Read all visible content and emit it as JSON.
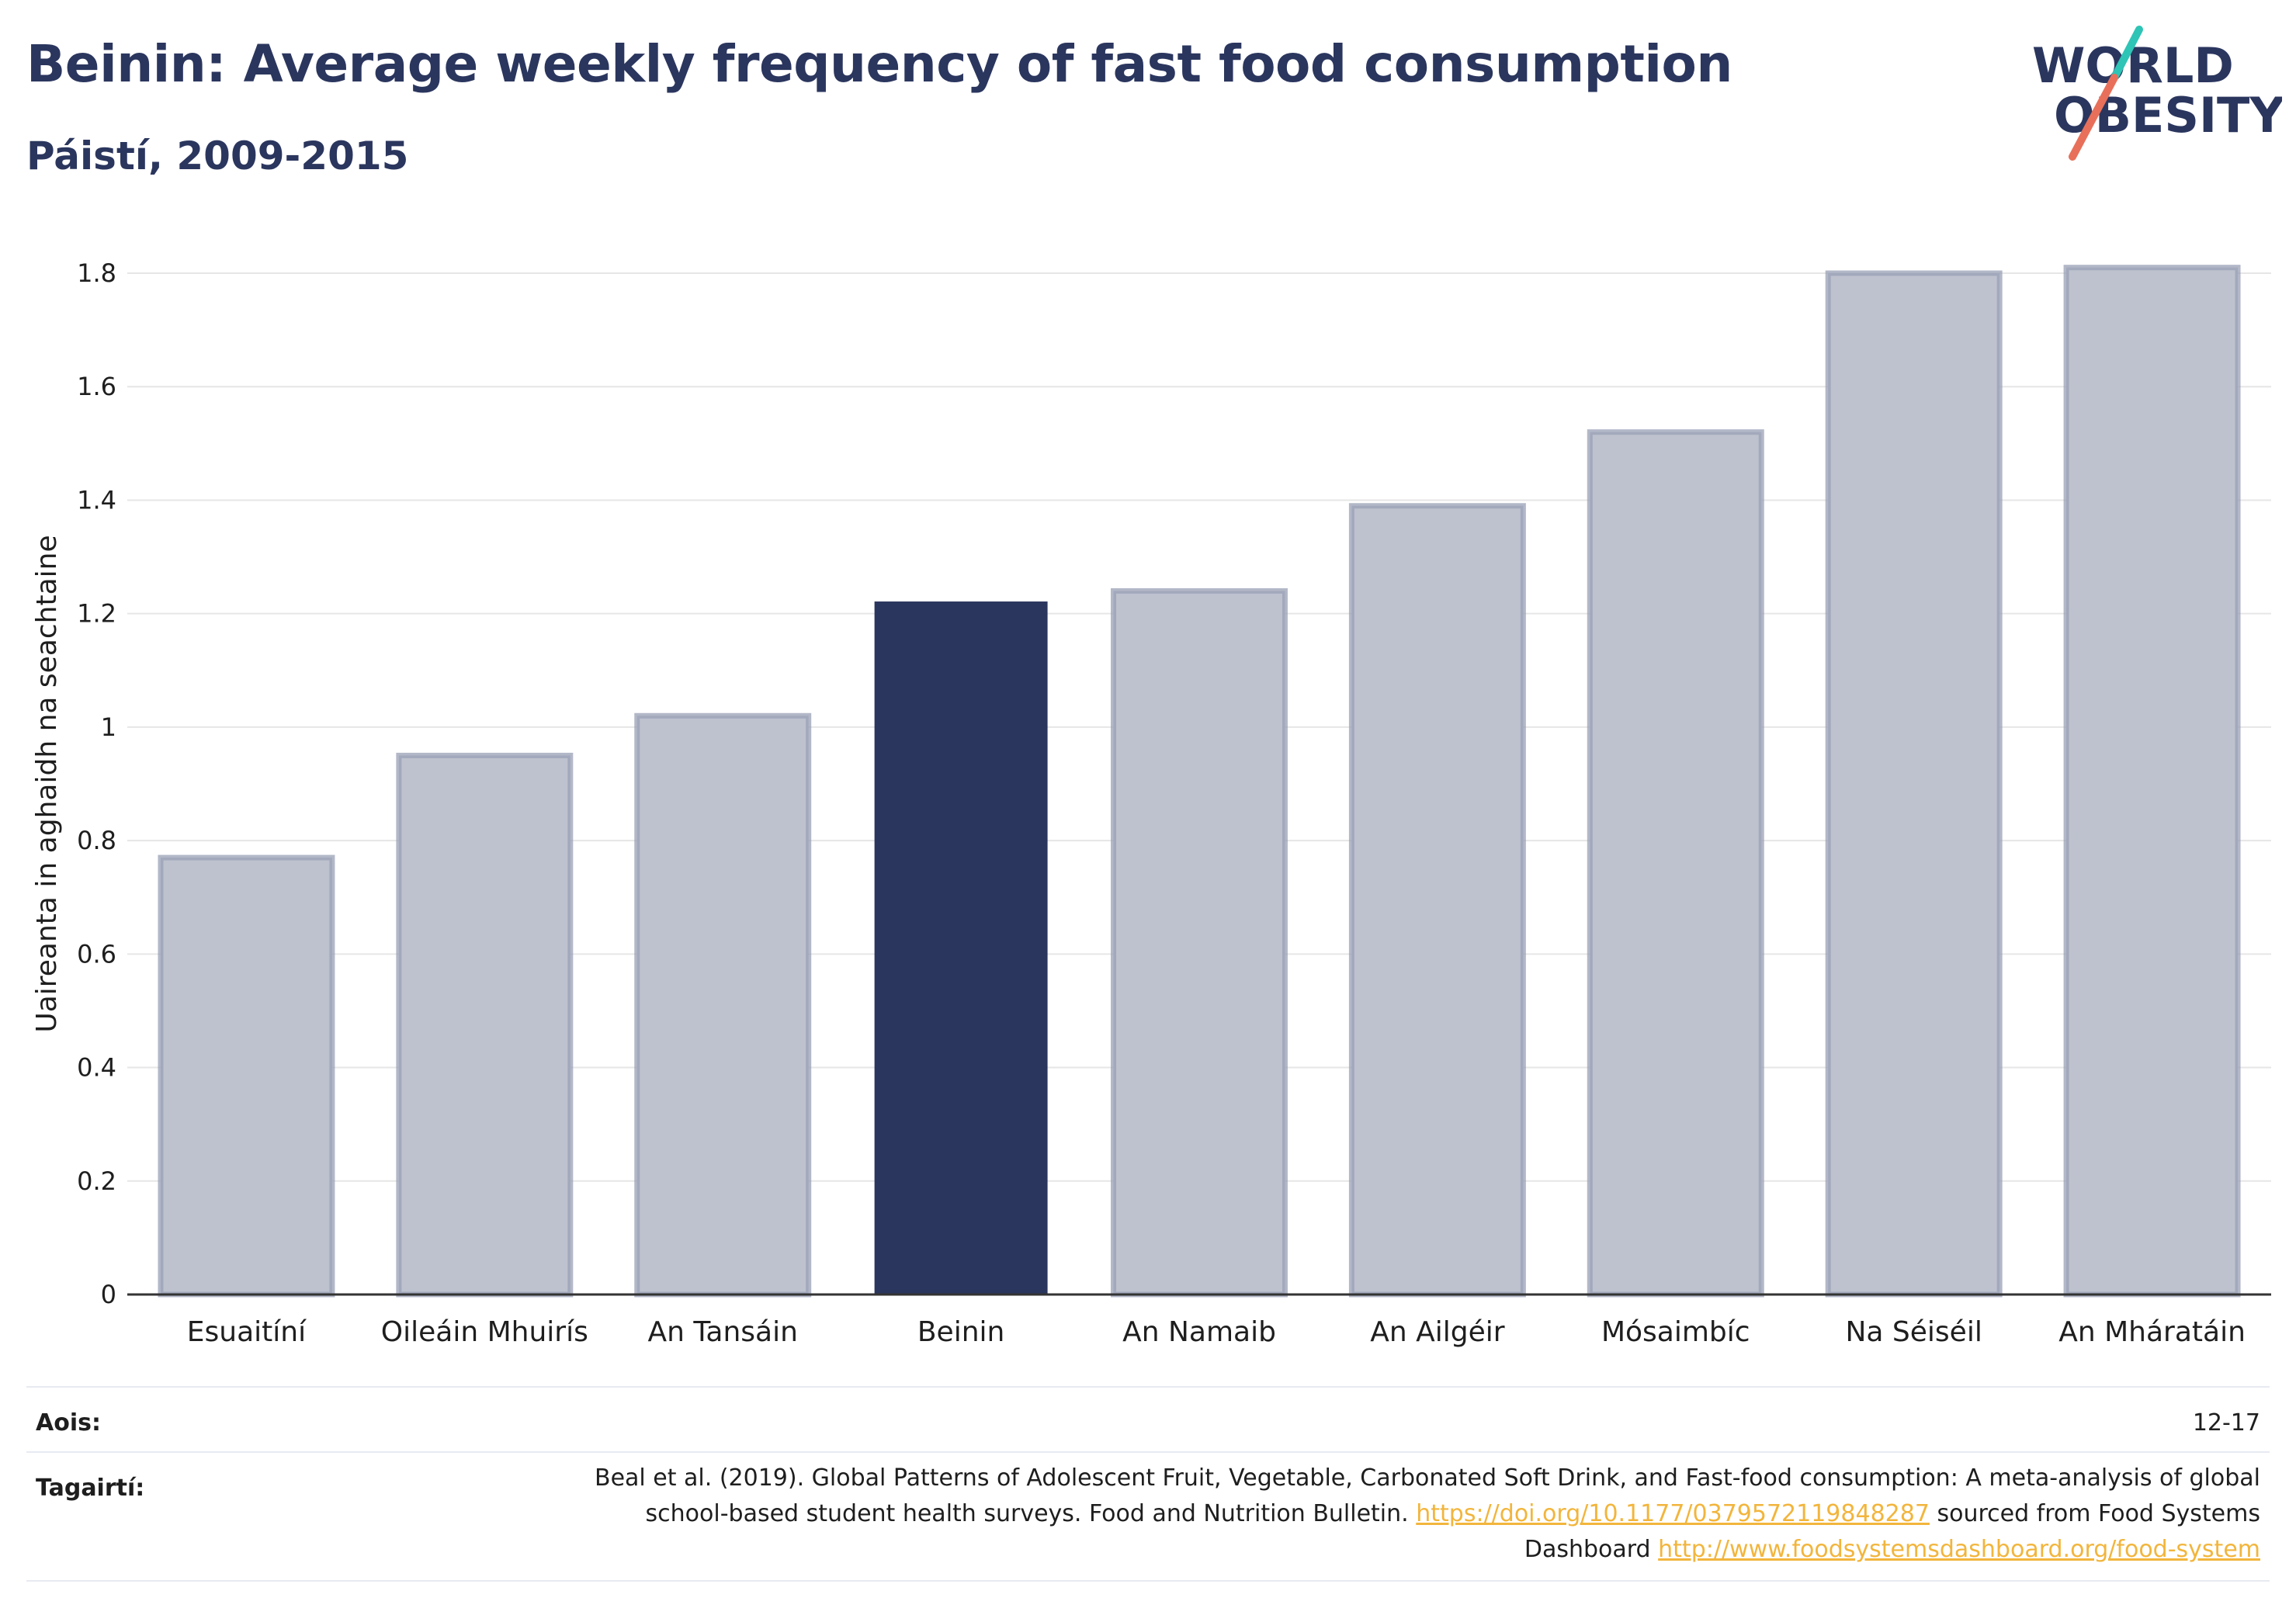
{
  "header": {
    "title": "Beinin: Average weekly frequency of fast food consumption",
    "subtitle": "Páistí, 2009-2015"
  },
  "logo": {
    "line1": "WORLD",
    "line2": "OBESITY",
    "accent_colors": [
      "#2ec4b6",
      "#e8705a"
    ]
  },
  "colors": {
    "highlight": "#2b365e",
    "bar": "#bec2ce",
    "bar_border": "#9aa0b5",
    "grid": "#e6e6e6",
    "text": "#1e1e1e",
    "title": "#2b365e",
    "link": "#f2b53c"
  },
  "chart_data": {
    "type": "bar",
    "categories": [
      "Esuaitíní",
      "Oileáin Mhuirís",
      "An Tansáin",
      "Beinin",
      "An Namaib",
      "An Ailgéir",
      "Mósaimbíc",
      "Na Séiséil",
      "An Mháratáin"
    ],
    "values": [
      0.77,
      0.95,
      1.02,
      1.22,
      1.24,
      1.39,
      1.52,
      1.8,
      1.81
    ],
    "highlight": "Beinin",
    "ylabel": "Uaireanta in aghaidh na seachtaine",
    "ylim": [
      0,
      1.8
    ],
    "yticks": [
      0,
      0.2,
      0.4,
      0.6,
      0.8,
      1,
      1.2,
      1.4,
      1.6,
      1.8
    ],
    "ytick_labels": [
      "0",
      "0.2",
      "0.4",
      "0.6",
      "0.8",
      "1",
      "1.2",
      "1.4",
      "1.6",
      "1.8"
    ],
    "grid": true
  },
  "footer": {
    "age_label": "Aois:",
    "age_value": "12-17",
    "ref_label": "Tagairtí:",
    "ref_text1": "Beal et al. (2019). Global Patterns of Adolescent Fruit, Vegetable, Carbonated Soft Drink, and Fast-food consumption: A meta-analysis of global school-based student health surveys. Food and Nutrition Bulletin.",
    "ref_link1": "https://doi.org/10.1177/0379572119848287",
    "ref_text2": "sourced from Food Systems Dashboard",
    "ref_link2": "http://www.foodsystemsdashboard.org/food-system"
  }
}
